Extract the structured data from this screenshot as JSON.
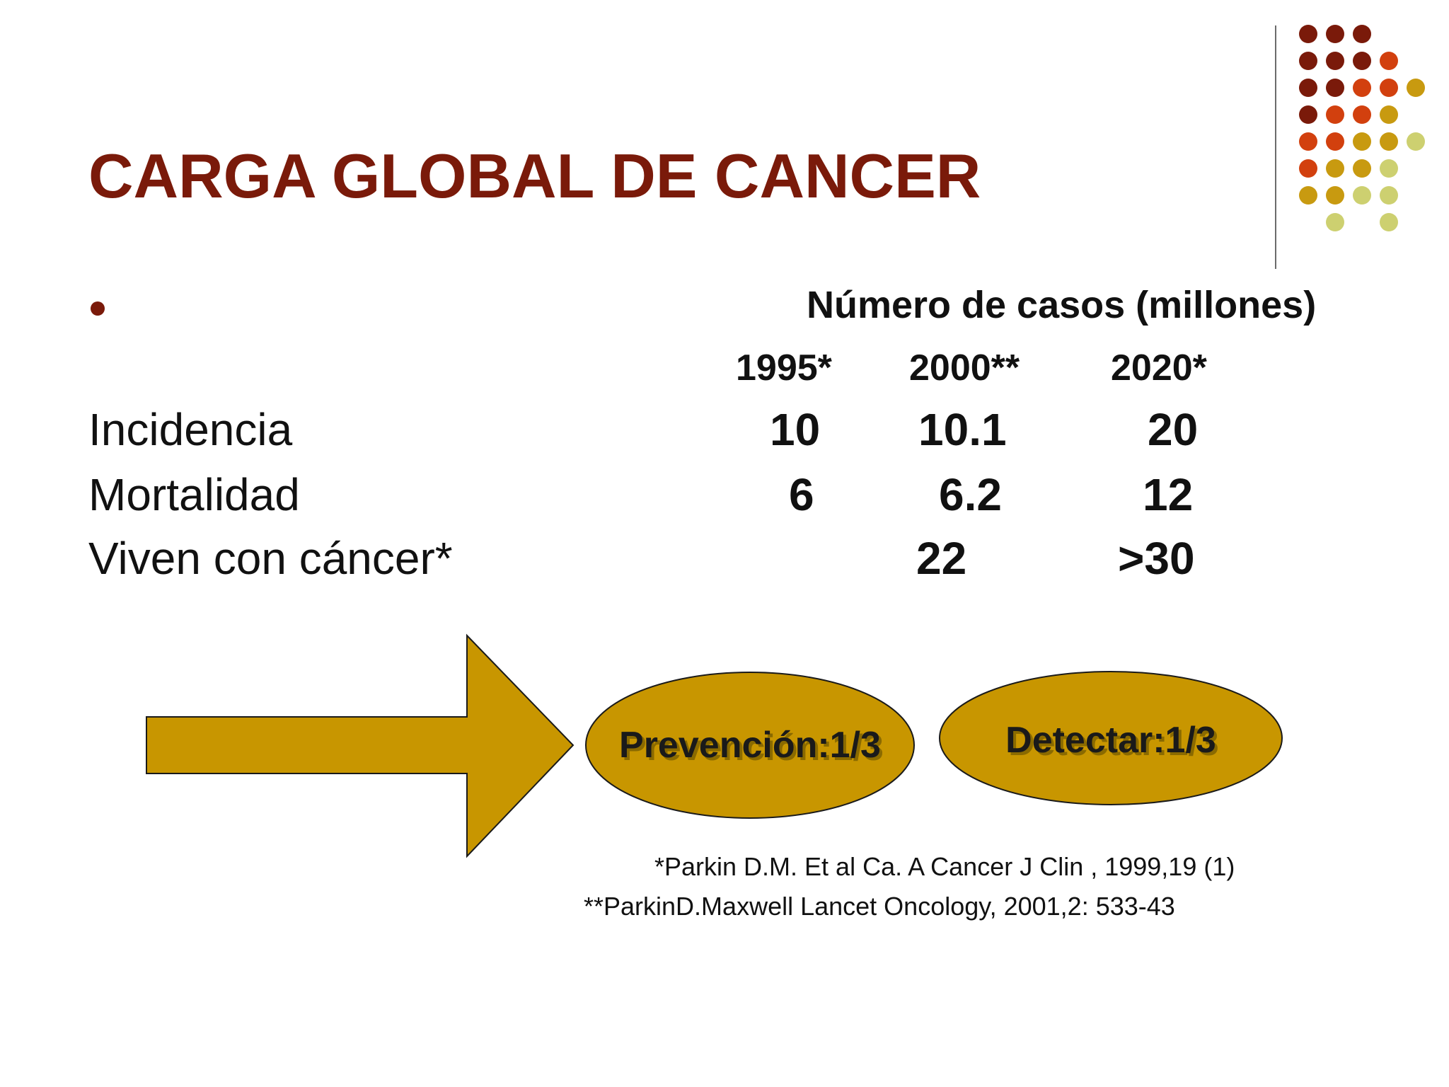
{
  "slide": {
    "title": "CARGA GLOBAL DE CANCER",
    "table": {
      "header": "Número de casos (millones)",
      "years": [
        "1995*",
        "2000**",
        "2020*"
      ],
      "rows": [
        {
          "label": "Incidencia",
          "values": [
            "10",
            "10.1",
            "20"
          ]
        },
        {
          "label": "Mortalidad",
          "values": [
            "6",
            "6.2",
            "12"
          ]
        },
        {
          "label": "Viven con cáncer*",
          "values": [
            "",
            "22",
            ">30"
          ]
        }
      ]
    },
    "diagram": {
      "prevention": "Prevención:1/3",
      "detection": "Detectar:1/3"
    },
    "references": [
      "*Parkin D.M. Et al Ca. A Cancer J Clin , 1999,19 (1)",
      "**ParkinD.Maxwell Lancet Oncology, 2001,2: 533-43"
    ],
    "colors": {
      "title": "#7a1a0a",
      "gold": "#c89600",
      "dark_red": "#7a1a0a",
      "orange_red": "#d2400e",
      "olive_yellow": "#c89a10",
      "light_olive": "#cdd070"
    }
  }
}
